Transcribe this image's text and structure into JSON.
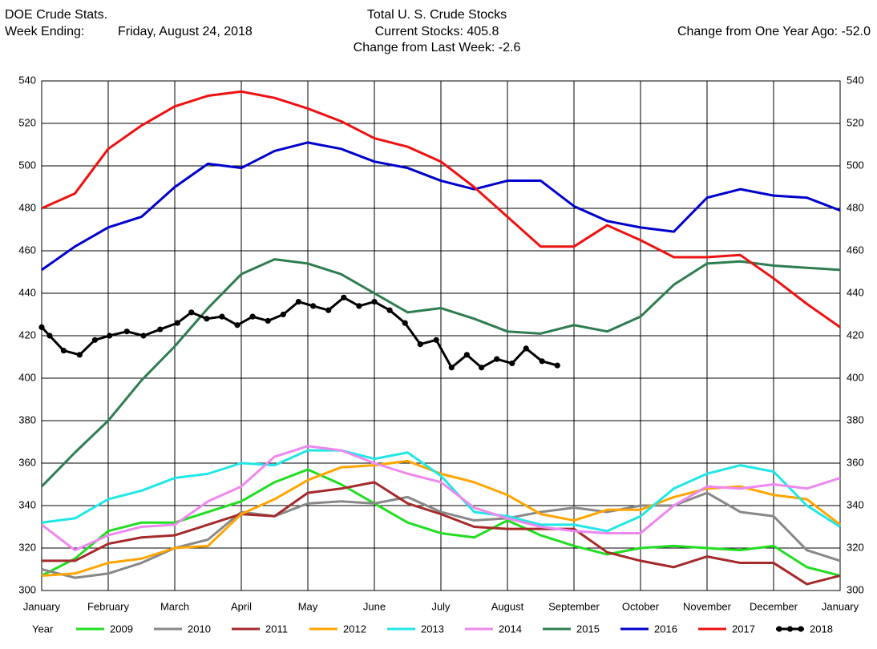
{
  "header": {
    "left_title": "DOE Crude Stats.",
    "week_label": "Week Ending:",
    "week_date": "Friday, August 24, 2018",
    "center_title": "Total U. S. Crude Stocks",
    "current": "Current Stocks: 405.8",
    "weekly_change": "Change from Last Week:  -2.6",
    "yearly_change": "Change from One Year Ago: -52.0"
  },
  "chart_data": {
    "type": "line",
    "legend_title": "Year",
    "grid": true,
    "x": [
      0,
      0.5,
      1,
      1.5,
      2,
      2.5,
      3,
      3.5,
      4,
      4.5,
      5,
      5.5,
      6,
      6.5,
      7,
      7.5,
      8,
      8.5,
      9,
      9.5,
      10,
      10.5,
      11,
      11.5,
      12
    ],
    "xlim": [
      0,
      12
    ],
    "xticks": [
      {
        "value": 0,
        "label": "January"
      },
      {
        "value": 1,
        "label": "February"
      },
      {
        "value": 2,
        "label": "March"
      },
      {
        "value": 3,
        "label": "April"
      },
      {
        "value": 4,
        "label": "May"
      },
      {
        "value": 5,
        "label": "June"
      },
      {
        "value": 6,
        "label": "July"
      },
      {
        "value": 7,
        "label": "August"
      },
      {
        "value": 8,
        "label": "September"
      },
      {
        "value": 9,
        "label": "October"
      },
      {
        "value": 10,
        "label": "November"
      },
      {
        "value": 11,
        "label": "December"
      },
      {
        "value": 12,
        "label": "January"
      }
    ],
    "ylim": [
      300,
      540
    ],
    "yticks": [
      300,
      320,
      340,
      360,
      380,
      400,
      420,
      440,
      460,
      480,
      500,
      520,
      540
    ],
    "series": [
      {
        "name": "2009",
        "color": "#22dd22",
        "values": [
          307,
          315,
          328,
          332,
          332,
          337,
          342,
          351,
          357,
          350,
          341,
          332,
          327,
          325,
          333,
          326,
          321,
          317,
          320,
          321,
          320,
          319,
          321,
          311,
          307
        ]
      },
      {
        "name": "2010",
        "color": "#888888",
        "values": [
          310,
          306,
          308,
          313,
          320,
          324,
          337,
          335,
          341,
          342,
          341,
          344,
          337,
          333,
          334,
          337,
          339,
          337,
          340,
          340,
          346,
          337,
          335,
          319,
          314
        ]
      },
      {
        "name": "2011",
        "color": "#a52a2a",
        "values": [
          314,
          314,
          322,
          325,
          326,
          331,
          336,
          335,
          346,
          348,
          351,
          341,
          336,
          330,
          329,
          329,
          329,
          318,
          314,
          311,
          316,
          313,
          313,
          303,
          307
        ]
      },
      {
        "name": "2012",
        "color": "#ffa500",
        "values": [
          307,
          308,
          313,
          315,
          320,
          321,
          336,
          343,
          352,
          358,
          359,
          361,
          355,
          351,
          345,
          336,
          333,
          338,
          338,
          344,
          348,
          349,
          345,
          343,
          331
        ]
      },
      {
        "name": "2013",
        "color": "#22e6e6",
        "values": [
          332,
          334,
          343,
          347,
          353,
          355,
          360,
          359,
          366,
          366,
          362,
          365,
          354,
          337,
          335,
          331,
          331,
          328,
          335,
          348,
          355,
          359,
          356,
          340,
          330
        ]
      },
      {
        "name": "2014",
        "color": "#ee88ee",
        "values": [
          331,
          319,
          326,
          330,
          331,
          342,
          349,
          363,
          368,
          366,
          360,
          355,
          351,
          339,
          334,
          330,
          328,
          327,
          327,
          340,
          349,
          348,
          350,
          348,
          353
        ]
      },
      {
        "name": "2015",
        "color": "#2e7d50",
        "values": [
          349,
          365,
          380,
          399,
          415,
          433,
          449,
          456,
          454,
          449,
          440,
          431,
          433,
          428,
          422,
          421,
          425,
          422,
          429,
          444,
          454,
          455,
          453,
          452,
          451
        ]
      },
      {
        "name": "2016",
        "color": "#0000cc",
        "values": [
          451,
          462,
          471,
          476,
          490,
          501,
          499,
          507,
          511,
          508,
          502,
          499,
          493,
          489,
          493,
          493,
          481,
          474,
          471,
          469,
          485,
          489,
          486,
          485,
          479
        ]
      },
      {
        "name": "2017",
        "color": "#ee1111",
        "values": [
          480,
          487,
          508,
          519,
          528,
          533,
          535,
          532,
          527,
          521,
          513,
          509,
          502,
          490,
          476,
          462,
          462,
          472,
          465,
          457,
          457,
          458,
          447,
          435,
          424
        ]
      },
      {
        "name": "2018",
        "color": "#000000",
        "markers": true,
        "x": [
          0,
          0.12,
          0.33,
          0.57,
          0.8,
          1.02,
          1.28,
          1.53,
          1.78,
          2.04,
          2.25,
          2.48,
          2.71,
          2.94,
          3.17,
          3.4,
          3.63,
          3.86,
          4.08,
          4.31,
          4.54,
          4.77,
          5.0,
          5.23,
          5.46,
          5.69,
          5.93,
          6.16,
          6.39,
          6.61,
          6.84,
          7.07,
          7.28,
          7.52,
          7.75
        ],
        "values": [
          424,
          420,
          413,
          411,
          418,
          420,
          422,
          420,
          423,
          426,
          431,
          428,
          429,
          425,
          429,
          427,
          430,
          436,
          434,
          432,
          438,
          434,
          436,
          432,
          426,
          416,
          418,
          405,
          411,
          405,
          409,
          407,
          414,
          408,
          406
        ]
      }
    ]
  }
}
